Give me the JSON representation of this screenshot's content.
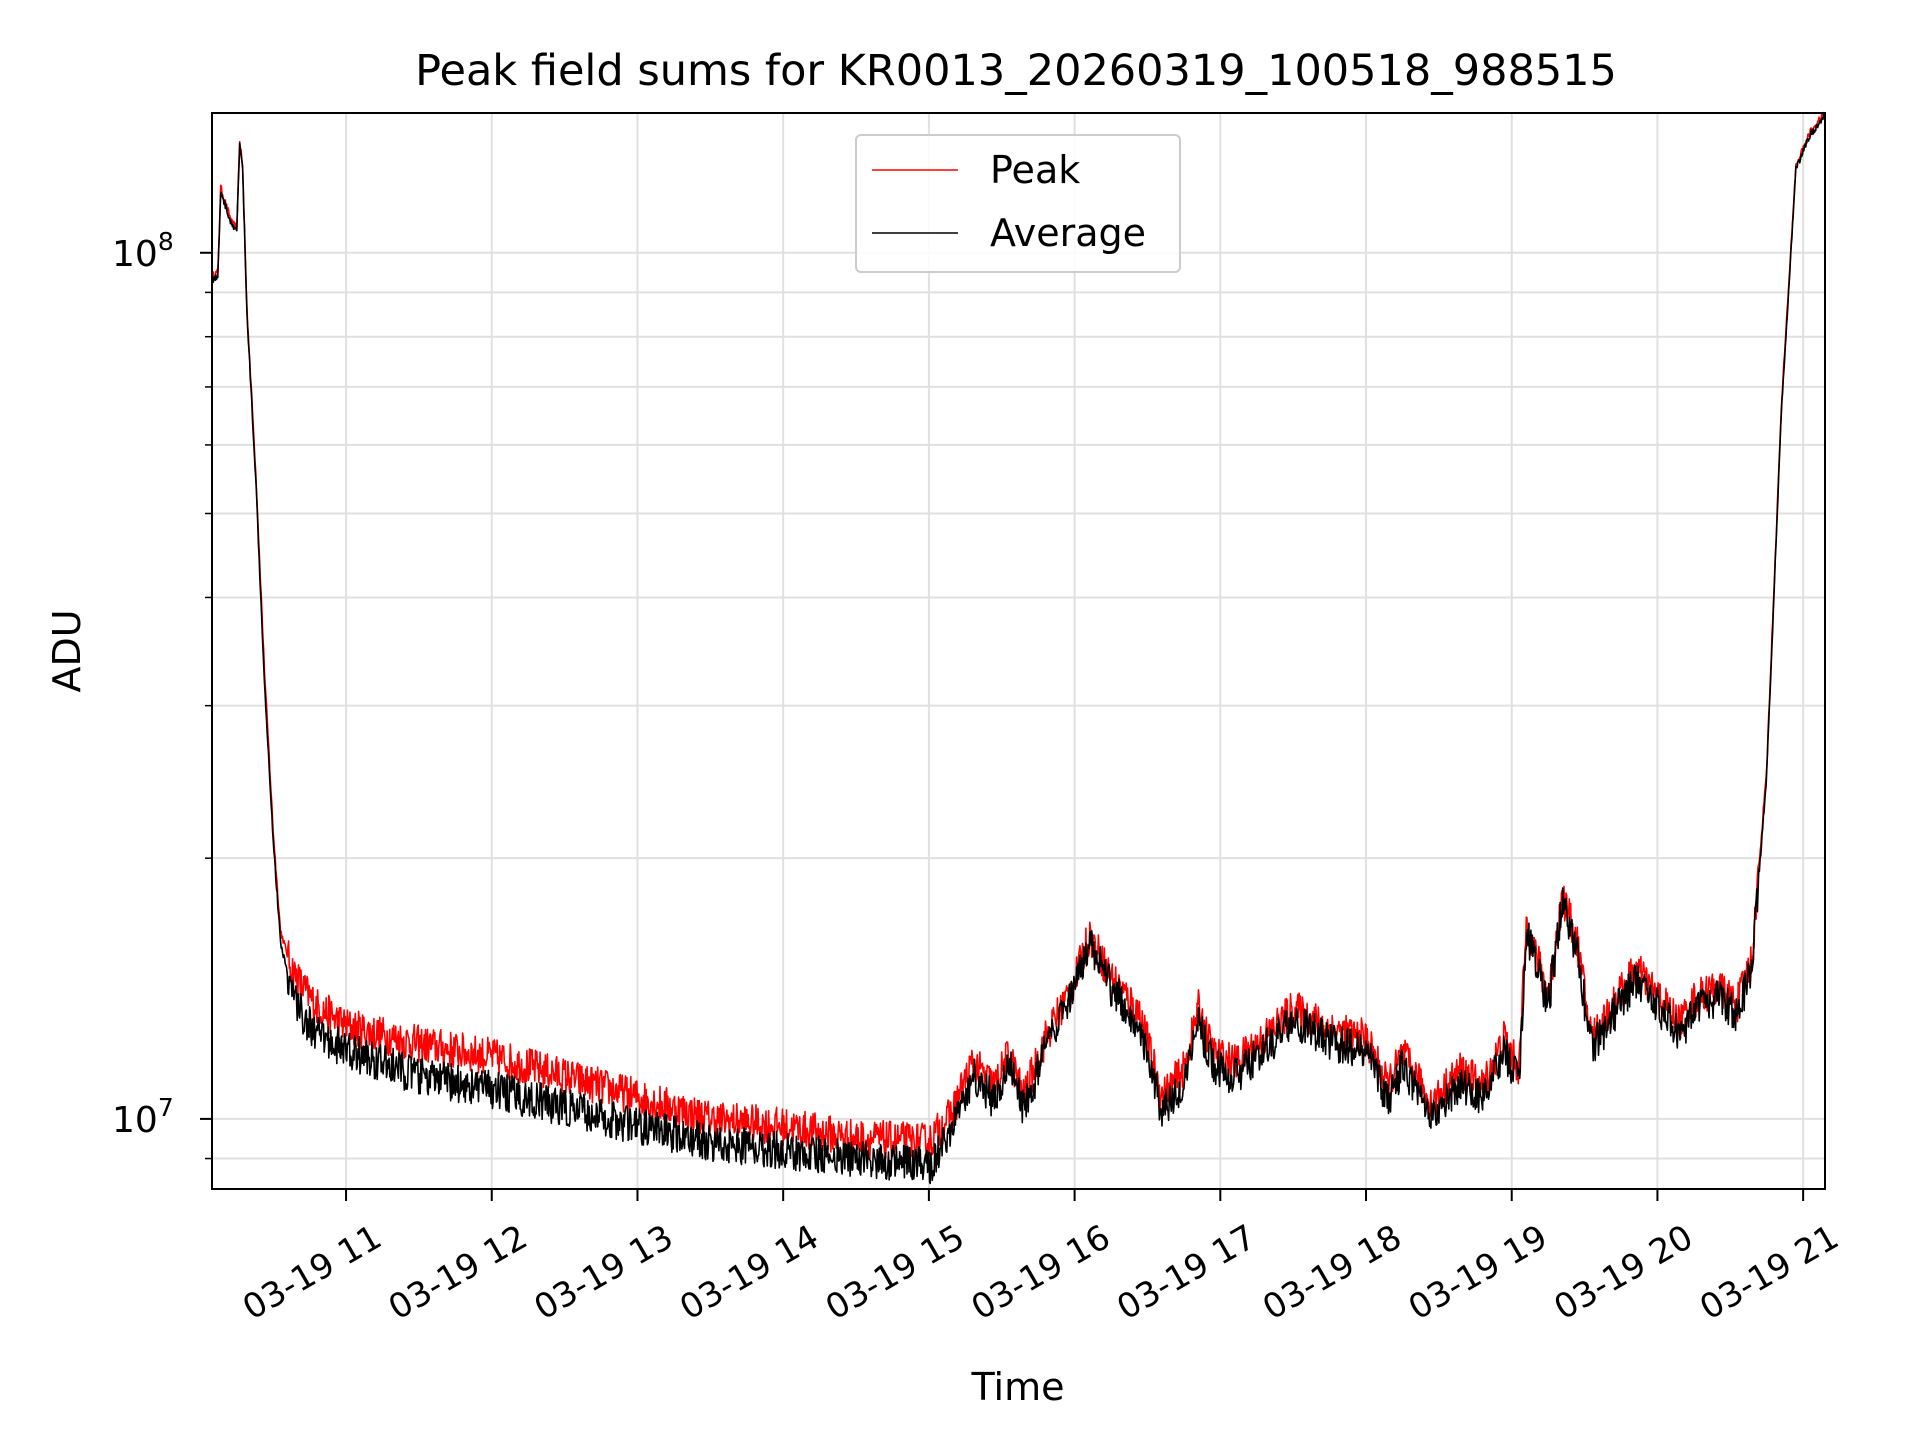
{
  "chart_data": {
    "type": "line",
    "title": "Peak field sums for KR0013_20260319_100518_988515",
    "xlabel": "Time",
    "ylabel": "ADU",
    "yscale": "log",
    "ylim": [
      8300000.0,
      145000000.0
    ],
    "xlim_hours": [
      10.08,
      21.15
    ],
    "grid": true,
    "grid_color": "#e0e0e0",
    "x_ticks": [
      {
        "hour": 11,
        "label": "03-19 11"
      },
      {
        "hour": 12,
        "label": "03-19 12"
      },
      {
        "hour": 13,
        "label": "03-19 13"
      },
      {
        "hour": 14,
        "label": "03-19 14"
      },
      {
        "hour": 15,
        "label": "03-19 15"
      },
      {
        "hour": 16,
        "label": "03-19 16"
      },
      {
        "hour": 17,
        "label": "03-19 17"
      },
      {
        "hour": 18,
        "label": "03-19 18"
      },
      {
        "hour": 19,
        "label": "03-19 19"
      },
      {
        "hour": 20,
        "label": "03-19 20"
      },
      {
        "hour": 21,
        "label": "03-19 21"
      }
    ],
    "y_ticks": [
      {
        "value": 10000000,
        "base": "10",
        "exp": "7"
      },
      {
        "value": 100000000,
        "base": "10",
        "exp": "8"
      }
    ],
    "legend": {
      "position": "upper-center",
      "entries": [
        {
          "label": "Peak",
          "color": "#ff0000"
        },
        {
          "label": "Average",
          "color": "#000000"
        }
      ]
    },
    "series": [
      {
        "name": "Average",
        "color": "#000000",
        "points": [
          [
            10.08,
            93000000.0
          ],
          [
            10.12,
            94000000.0
          ],
          [
            10.14,
            118000000.0
          ],
          [
            10.18,
            112000000.0
          ],
          [
            10.22,
            107000000.0
          ],
          [
            10.25,
            106000000.0
          ],
          [
            10.27,
            134000000.0
          ],
          [
            10.29,
            125000000.0
          ],
          [
            10.32,
            85000000.0
          ],
          [
            10.38,
            55000000.0
          ],
          [
            10.44,
            32000000.0
          ],
          [
            10.5,
            21000000.0
          ],
          [
            10.55,
            16000000.0
          ],
          [
            10.62,
            14200000.0
          ],
          [
            10.7,
            13200000.0
          ],
          [
            10.8,
            12500000.0
          ],
          [
            11.0,
            12000000.0
          ],
          [
            11.5,
            11200000.0
          ],
          [
            12.0,
            10800000.0
          ],
          [
            12.5,
            10300000.0
          ],
          [
            13.0,
            9800000.0
          ],
          [
            13.5,
            9400000.0
          ],
          [
            14.0,
            9200000.0
          ],
          [
            14.5,
            9000000.0
          ],
          [
            15.0,
            8800000.0
          ],
          [
            15.15,
            9700000.0
          ],
          [
            15.3,
            11200000.0
          ],
          [
            15.45,
            10500000.0
          ],
          [
            15.55,
            11600000.0
          ],
          [
            15.65,
            10200000.0
          ],
          [
            15.8,
            12000000.0
          ],
          [
            16.0,
            14000000.0
          ],
          [
            16.1,
            16000000.0
          ],
          [
            16.25,
            14200000.0
          ],
          [
            16.45,
            12800000.0
          ],
          [
            16.6,
            10200000.0
          ],
          [
            16.75,
            11000000.0
          ],
          [
            16.85,
            13000000.0
          ],
          [
            16.95,
            11500000.0
          ],
          [
            17.1,
            11200000.0
          ],
          [
            17.3,
            12000000.0
          ],
          [
            17.5,
            13000000.0
          ],
          [
            17.8,
            12200000.0
          ],
          [
            18.0,
            12000000.0
          ],
          [
            18.15,
            10500000.0
          ],
          [
            18.25,
            11500000.0
          ],
          [
            18.45,
            10000000.0
          ],
          [
            18.65,
            11000000.0
          ],
          [
            18.8,
            10500000.0
          ],
          [
            18.95,
            12000000.0
          ],
          [
            19.05,
            11000000.0
          ],
          [
            19.1,
            16500000.0
          ],
          [
            19.25,
            13500000.0
          ],
          [
            19.35,
            17800000.0
          ],
          [
            19.45,
            15500000.0
          ],
          [
            19.55,
            12000000.0
          ],
          [
            19.7,
            13200000.0
          ],
          [
            19.85,
            14500000.0
          ],
          [
            20.0,
            13500000.0
          ],
          [
            20.15,
            12500000.0
          ],
          [
            20.25,
            13300000.0
          ],
          [
            20.4,
            13800000.0
          ],
          [
            20.55,
            13200000.0
          ],
          [
            20.65,
            15000000.0
          ],
          [
            20.75,
            25000000.0
          ],
          [
            20.85,
            65000000.0
          ],
          [
            20.95,
            125000000.0
          ],
          [
            21.05,
            137000000.0
          ],
          [
            21.15,
            144000000.0
          ]
        ]
      },
      {
        "name": "Peak",
        "color": "#ff0000",
        "points": [
          [
            10.08,
            94000000.0
          ],
          [
            10.12,
            95000000.0
          ],
          [
            10.14,
            119000000.0
          ],
          [
            10.18,
            113000000.0
          ],
          [
            10.22,
            108000000.0
          ],
          [
            10.25,
            107000000.0
          ],
          [
            10.27,
            135000000.0
          ],
          [
            10.29,
            126000000.0
          ],
          [
            10.32,
            86000000.0
          ],
          [
            10.38,
            56000000.0
          ],
          [
            10.44,
            33000000.0
          ],
          [
            10.5,
            21500000.0
          ],
          [
            10.55,
            16500000.0
          ],
          [
            10.62,
            15000000.0
          ],
          [
            10.7,
            14200000.0
          ],
          [
            10.8,
            13500000.0
          ],
          [
            11.0,
            12800000.0
          ],
          [
            11.5,
            12200000.0
          ],
          [
            12.0,
            11800000.0
          ],
          [
            12.5,
            11200000.0
          ],
          [
            13.0,
            10600000.0
          ],
          [
            13.5,
            10000000.0
          ],
          [
            14.0,
            9800000.0
          ],
          [
            14.5,
            9500000.0
          ],
          [
            15.0,
            9400000.0
          ],
          [
            15.15,
            10100000.0
          ],
          [
            15.3,
            11600000.0
          ],
          [
            15.45,
            10900000.0
          ],
          [
            15.55,
            11900000.0
          ],
          [
            15.65,
            10600000.0
          ],
          [
            15.8,
            12400000.0
          ],
          [
            16.0,
            14400000.0
          ],
          [
            16.1,
            16300000.0
          ],
          [
            16.25,
            14600000.0
          ],
          [
            16.45,
            13200000.0
          ],
          [
            16.6,
            10600000.0
          ],
          [
            16.75,
            11400000.0
          ],
          [
            16.85,
            13400000.0
          ],
          [
            16.95,
            11900000.0
          ],
          [
            17.1,
            11600000.0
          ],
          [
            17.3,
            12400000.0
          ],
          [
            17.5,
            13400000.0
          ],
          [
            17.8,
            12600000.0
          ],
          [
            18.0,
            12400000.0
          ],
          [
            18.15,
            10900000.0
          ],
          [
            18.25,
            11900000.0
          ],
          [
            18.45,
            10400000.0
          ],
          [
            18.65,
            11400000.0
          ],
          [
            18.8,
            10900000.0
          ],
          [
            18.95,
            12400000.0
          ],
          [
            19.05,
            11400000.0
          ],
          [
            19.1,
            16800000.0
          ],
          [
            19.25,
            13900000.0
          ],
          [
            19.35,
            18100000.0
          ],
          [
            19.45,
            15900000.0
          ],
          [
            19.55,
            12400000.0
          ],
          [
            19.7,
            13600000.0
          ],
          [
            19.85,
            14900000.0
          ],
          [
            20.0,
            13900000.0
          ],
          [
            20.15,
            12900000.0
          ],
          [
            20.25,
            13700000.0
          ],
          [
            20.4,
            14200000.0
          ],
          [
            20.55,
            13600000.0
          ],
          [
            20.65,
            15400000.0
          ],
          [
            20.75,
            25500000.0
          ],
          [
            20.85,
            66000000.0
          ],
          [
            20.95,
            126000000.0
          ],
          [
            21.05,
            138000000.0
          ],
          [
            21.15,
            145000000.0
          ]
        ]
      }
    ]
  }
}
